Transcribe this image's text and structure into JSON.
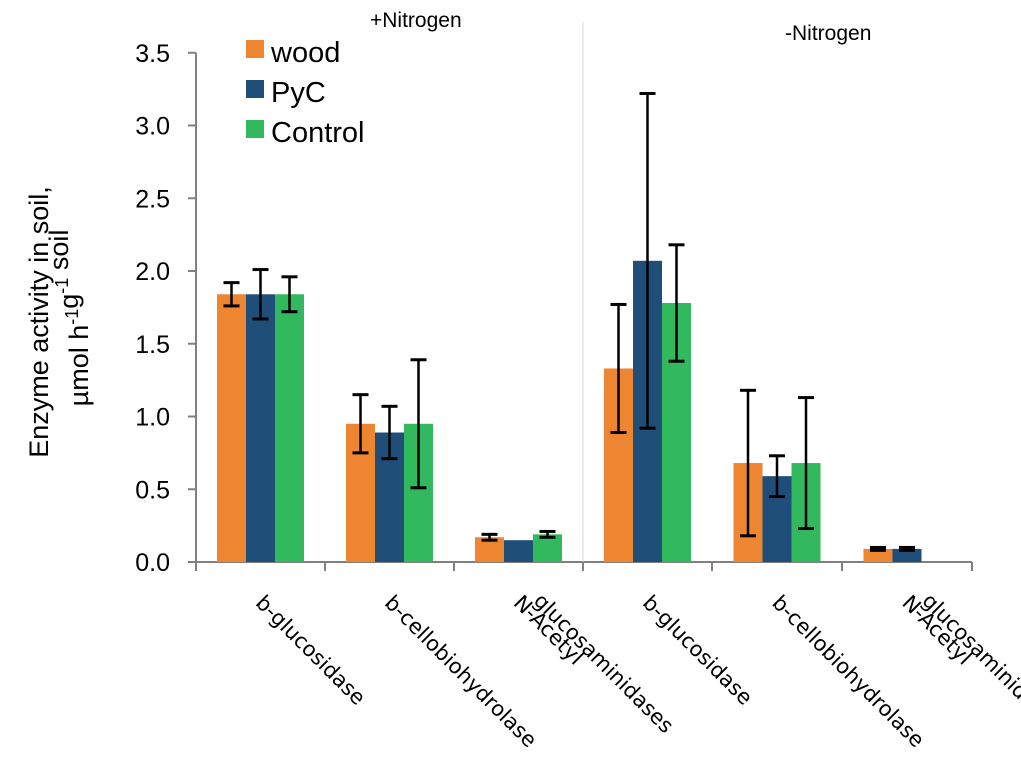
{
  "chart_data": {
    "type": "bar",
    "groups": [
      {
        "title": "+Nitrogen",
        "categories": [
          [
            "b-glucosidase"
          ],
          [
            "b-cellobiohydrolase"
          ],
          [
            "N-Acetyl",
            "glucosaminidases"
          ]
        ]
      },
      {
        "title": "-Nitrogen",
        "categories": [
          [
            "b-glucosidase"
          ],
          [
            "b-cellobiohydrolase"
          ],
          [
            "N-Acetyl",
            "glucosaminidases"
          ]
        ]
      }
    ],
    "series": [
      {
        "name": "wood",
        "color": "#ED8531",
        "values": [
          1.84,
          0.95,
          0.17,
          1.33,
          0.68,
          0.09
        ],
        "error": [
          0.08,
          0.2,
          0.02,
          0.44,
          0.5,
          0.01
        ]
      },
      {
        "name": "PyC",
        "color": "#1F4E79",
        "values": [
          1.84,
          0.89,
          0.15,
          2.07,
          0.59,
          0.09
        ],
        "error": [
          0.17,
          0.18,
          null,
          1.15,
          0.14,
          0.01
        ]
      },
      {
        "name": "Control",
        "color": "#33B95D",
        "values": [
          1.84,
          0.95,
          0.19,
          1.78,
          0.68,
          null
        ],
        "error": [
          0.12,
          0.44,
          0.02,
          0.4,
          0.45,
          null
        ]
      }
    ],
    "ylabel": {
      "line1": "Enzyme activity in soil,",
      "line2_prefix": "µmol h",
      "line2_sup1": "-1",
      "line2_mid": "g",
      "line2_sup2": "-1",
      "line2_suffix": " soil"
    },
    "ylim": [
      0,
      3.5
    ],
    "yticks": [
      "0.0",
      "0.5",
      "1.0",
      "1.5",
      "2.0",
      "2.5",
      "3.0",
      "3.5"
    ],
    "grid": false,
    "legend_position": "top-left"
  }
}
